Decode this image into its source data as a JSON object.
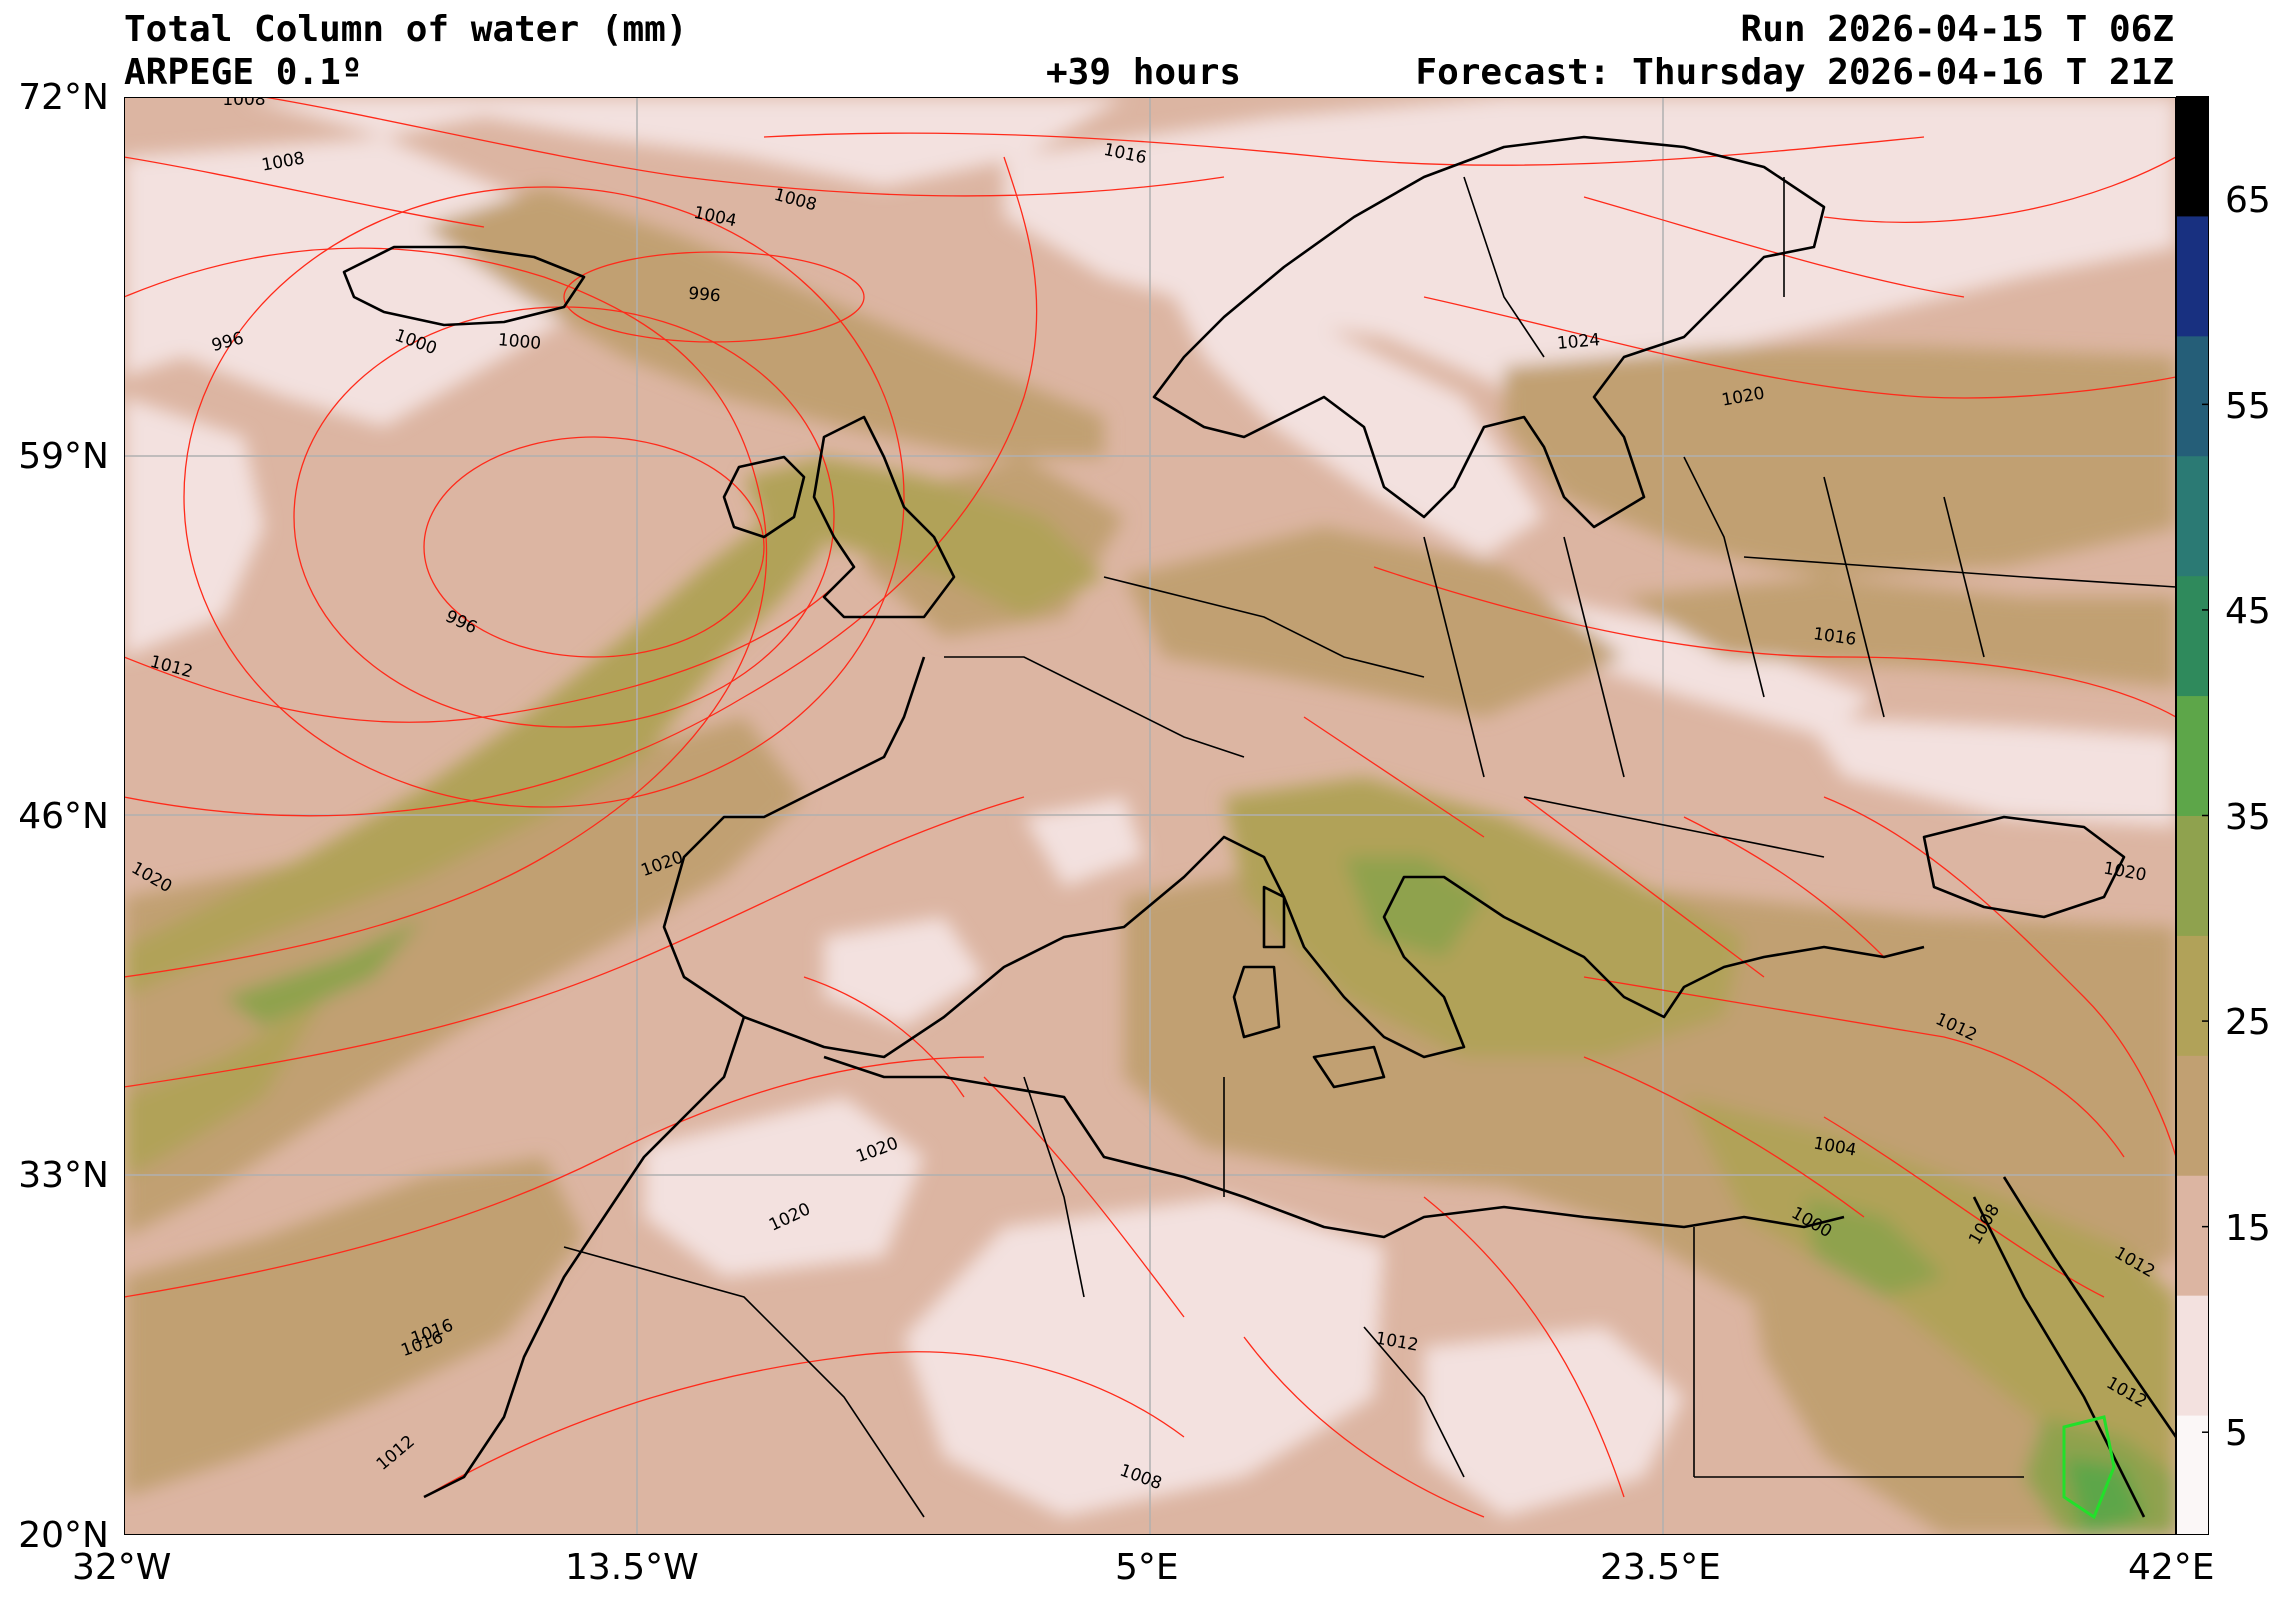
{
  "header": {
    "title": "Total Column of water (mm)",
    "model": "ARPEGE 0.1º",
    "lead_time": "+39 hours",
    "run": "Run 2026-04-15 T 06Z",
    "forecast": "Forecast: Thursday 2026-04-16 T 21Z"
  },
  "map": {
    "lat_labels": [
      "72°N",
      "59°N",
      "46°N",
      "33°N",
      "20°N"
    ],
    "lon_labels": [
      "32°W",
      "13.5°W",
      "5°E",
      "23.5°E",
      "42°E"
    ],
    "isobar_color": "#ff2a1a",
    "coast_color": "#000000",
    "isobar_labels": [
      "1008",
      "1008",
      "1016",
      "1008",
      "1004",
      "996",
      "1000",
      "1000",
      "996",
      "996",
      "1012",
      "1020",
      "1020",
      "1016",
      "1024",
      "1020",
      "1016",
      "1020",
      "1012",
      "1004",
      "1000",
      "1008",
      "1012",
      "1012",
      "1020",
      "1020",
      "1016",
      "1012",
      "1012",
      "1008"
    ]
  },
  "colorbar": {
    "tick_labels": [
      "65",
      "55",
      "45",
      "35",
      "25",
      "15",
      "5"
    ],
    "colors": [
      "#fbf7f7",
      "#f3e1df",
      "#dcb5a2",
      "#c1a072",
      "#b1a259",
      "#8fa24e",
      "#5da649",
      "#2f8a5c",
      "#2b7a74",
      "#255e78",
      "#183080",
      "#000000"
    ]
  }
}
